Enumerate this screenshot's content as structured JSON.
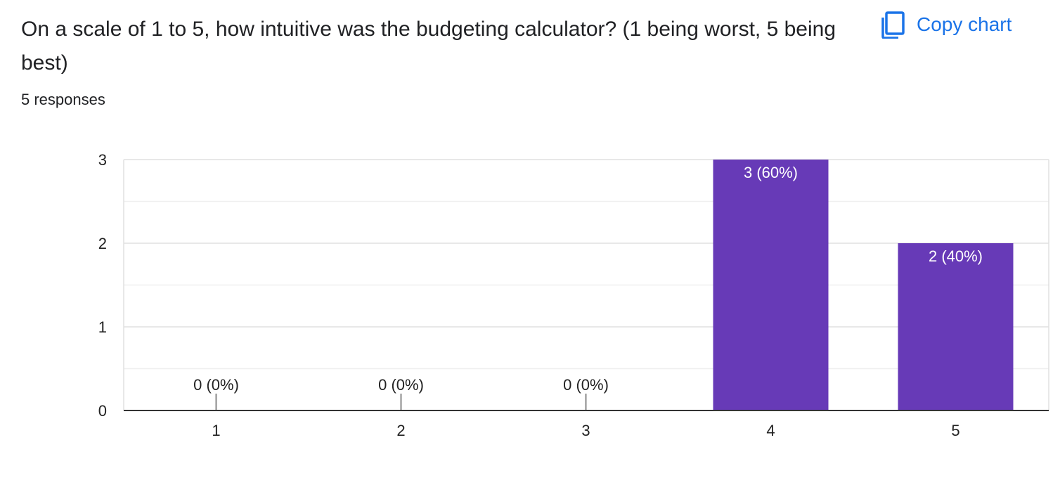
{
  "question": {
    "title": "On a scale of 1 to 5, how intuitive was the budgeting calculator? (1 being worst, 5 being best)",
    "responses": "5 responses"
  },
  "toolbar": {
    "copy_label": "Copy chart",
    "copy_icon": "copy-icon"
  },
  "colors": {
    "bar": "#673ab7",
    "accent": "#1a73e8",
    "grid": "#e8e8e8",
    "axis": "#333333"
  },
  "chart_data": {
    "type": "bar",
    "categories": [
      "1",
      "2",
      "3",
      "4",
      "5"
    ],
    "values": [
      0,
      0,
      0,
      3,
      2
    ],
    "data_labels": [
      "0 (0%)",
      "0 (0%)",
      "0 (0%)",
      "3 (60%)",
      "2 (40%)"
    ],
    "y_ticks": [
      "0",
      "1",
      "2",
      "3"
    ],
    "ylim": [
      0,
      3
    ],
    "grid": true,
    "legend": "none",
    "title": "",
    "xlabel": "",
    "ylabel": ""
  }
}
